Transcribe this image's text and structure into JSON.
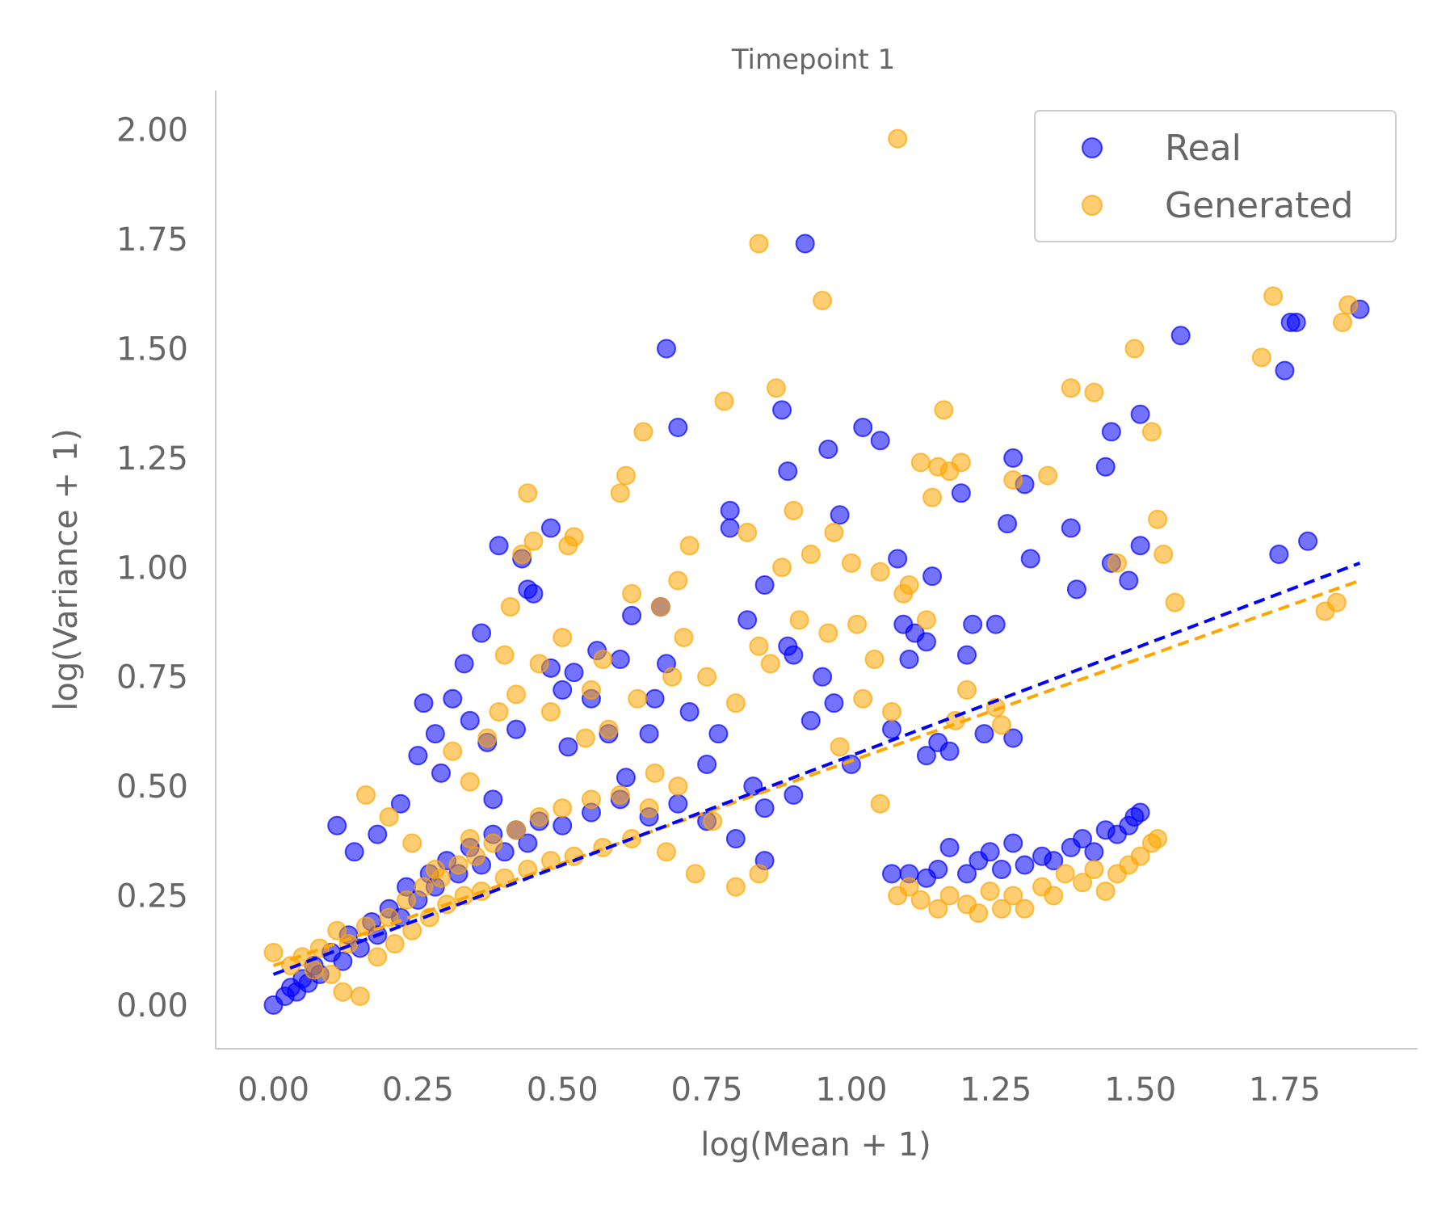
{
  "chart_data": {
    "type": "scatter",
    "title": "Timepoint 1",
    "xlabel": "log(Mean + 1)",
    "ylabel": "log(Variance + 1)",
    "xlim": [
      -0.1,
      1.98
    ],
    "ylim": [
      -0.1,
      2.09
    ],
    "x_ticks": [
      "0.00",
      "0.25",
      "0.50",
      "0.75",
      "1.00",
      "1.25",
      "1.50",
      "1.75"
    ],
    "y_ticks": [
      "0.00",
      "0.25",
      "0.50",
      "0.75",
      "1.00",
      "1.25",
      "1.50",
      "1.75",
      "2.00"
    ],
    "x_tick_values": [
      0,
      0.25,
      0.5,
      0.75,
      1.0,
      1.25,
      1.5,
      1.75
    ],
    "y_tick_values": [
      0,
      0.25,
      0.5,
      0.75,
      1.0,
      1.25,
      1.5,
      1.75,
      2.0
    ],
    "grid": false,
    "legend_position": "top-right",
    "series": [
      {
        "name": "Real",
        "color": "#0000ff",
        "alpha": 0.55,
        "fit_line": {
          "x": [
            0.0,
            1.88
          ],
          "y": [
            0.07,
            1.01
          ]
        },
        "points": [
          [
            0.0,
            0.0
          ],
          [
            0.02,
            0.02
          ],
          [
            0.03,
            0.04
          ],
          [
            0.04,
            0.03
          ],
          [
            0.05,
            0.06
          ],
          [
            0.06,
            0.05
          ],
          [
            0.07,
            0.09
          ],
          [
            0.08,
            0.07
          ],
          [
            0.1,
            0.12
          ],
          [
            0.12,
            0.1
          ],
          [
            0.13,
            0.16
          ],
          [
            0.15,
            0.13
          ],
          [
            0.17,
            0.19
          ],
          [
            0.18,
            0.16
          ],
          [
            0.2,
            0.22
          ],
          [
            0.22,
            0.2
          ],
          [
            0.23,
            0.27
          ],
          [
            0.25,
            0.24
          ],
          [
            0.27,
            0.3
          ],
          [
            0.28,
            0.27
          ],
          [
            0.3,
            0.33
          ],
          [
            0.32,
            0.3
          ],
          [
            0.34,
            0.36
          ],
          [
            0.36,
            0.32
          ],
          [
            0.38,
            0.39
          ],
          [
            0.4,
            0.35
          ],
          [
            0.42,
            0.4
          ],
          [
            0.44,
            0.37
          ],
          [
            0.46,
            0.42
          ],
          [
            0.5,
            0.41
          ],
          [
            0.55,
            0.44
          ],
          [
            0.6,
            0.47
          ],
          [
            0.65,
            0.43
          ],
          [
            0.7,
            0.46
          ],
          [
            0.75,
            0.42
          ],
          [
            0.8,
            0.38
          ],
          [
            0.85,
            0.45
          ],
          [
            0.9,
            0.48
          ],
          [
            0.11,
            0.41
          ],
          [
            0.14,
            0.35
          ],
          [
            0.18,
            0.39
          ],
          [
            0.22,
            0.46
          ],
          [
            0.25,
            0.57
          ],
          [
            0.26,
            0.69
          ],
          [
            0.28,
            0.62
          ],
          [
            0.29,
            0.53
          ],
          [
            0.31,
            0.7
          ],
          [
            0.33,
            0.78
          ],
          [
            0.34,
            0.65
          ],
          [
            0.36,
            0.85
          ],
          [
            0.37,
            0.6
          ],
          [
            0.38,
            0.47
          ],
          [
            0.39,
            1.05
          ],
          [
            0.42,
            0.63
          ],
          [
            0.43,
            1.02
          ],
          [
            0.44,
            0.95
          ],
          [
            0.45,
            0.94
          ],
          [
            0.48,
            0.77
          ],
          [
            0.48,
            1.09
          ],
          [
            0.5,
            0.72
          ],
          [
            0.51,
            0.59
          ],
          [
            0.52,
            0.76
          ],
          [
            0.55,
            0.7
          ],
          [
            0.56,
            0.81
          ],
          [
            0.58,
            0.62
          ],
          [
            0.6,
            0.79
          ],
          [
            0.61,
            0.52
          ],
          [
            0.62,
            0.89
          ],
          [
            0.65,
            0.62
          ],
          [
            0.66,
            0.7
          ],
          [
            0.67,
            0.91
          ],
          [
            0.68,
            0.78
          ],
          [
            0.68,
            1.5
          ],
          [
            0.7,
            1.32
          ],
          [
            0.72,
            0.67
          ],
          [
            0.75,
            0.55
          ],
          [
            0.77,
            0.62
          ],
          [
            0.79,
            1.13
          ],
          [
            0.79,
            1.09
          ],
          [
            0.82,
            0.88
          ],
          [
            0.83,
            0.5
          ],
          [
            0.85,
            0.96
          ],
          [
            0.85,
            0.33
          ],
          [
            0.88,
            1.36
          ],
          [
            0.89,
            1.22
          ],
          [
            0.89,
            0.82
          ],
          [
            0.9,
            0.8
          ],
          [
            0.92,
            1.74
          ],
          [
            0.93,
            0.65
          ],
          [
            0.95,
            0.75
          ],
          [
            0.96,
            1.27
          ],
          [
            0.97,
            0.69
          ],
          [
            0.98,
            1.12
          ],
          [
            1.0,
            0.55
          ],
          [
            1.02,
            1.32
          ],
          [
            1.05,
            1.29
          ],
          [
            1.07,
            0.63
          ],
          [
            1.08,
            1.02
          ],
          [
            1.09,
            0.87
          ],
          [
            1.1,
            0.79
          ],
          [
            1.11,
            0.85
          ],
          [
            1.13,
            0.83
          ],
          [
            1.13,
            0.57
          ],
          [
            1.14,
            0.98
          ],
          [
            1.15,
            0.6
          ],
          [
            1.17,
            0.58
          ],
          [
            1.19,
            1.17
          ],
          [
            1.2,
            0.8
          ],
          [
            1.21,
            0.87
          ],
          [
            1.23,
            0.62
          ],
          [
            1.25,
            0.87
          ],
          [
            1.27,
            1.1
          ],
          [
            1.28,
            1.25
          ],
          [
            1.28,
            0.61
          ],
          [
            1.3,
            1.19
          ],
          [
            1.31,
            1.02
          ],
          [
            1.38,
            1.09
          ],
          [
            1.39,
            0.95
          ],
          [
            1.44,
            1.23
          ],
          [
            1.45,
            1.31
          ],
          [
            1.45,
            1.01
          ],
          [
            1.48,
            0.97
          ],
          [
            1.5,
            1.35
          ],
          [
            1.5,
            1.05
          ],
          [
            1.57,
            1.53
          ],
          [
            1.74,
            1.03
          ],
          [
            1.75,
            1.45
          ],
          [
            1.76,
            1.56
          ],
          [
            1.77,
            1.56
          ],
          [
            1.79,
            1.06
          ],
          [
            1.88,
            1.59
          ],
          [
            1.07,
            0.3
          ],
          [
            1.1,
            0.3
          ],
          [
            1.13,
            0.29
          ],
          [
            1.15,
            0.31
          ],
          [
            1.17,
            0.36
          ],
          [
            1.2,
            0.3
          ],
          [
            1.22,
            0.33
          ],
          [
            1.24,
            0.35
          ],
          [
            1.26,
            0.31
          ],
          [
            1.28,
            0.37
          ],
          [
            1.3,
            0.32
          ],
          [
            1.33,
            0.34
          ],
          [
            1.35,
            0.33
          ],
          [
            1.38,
            0.36
          ],
          [
            1.4,
            0.38
          ],
          [
            1.42,
            0.35
          ],
          [
            1.44,
            0.4
          ],
          [
            1.46,
            0.39
          ],
          [
            1.48,
            0.41
          ],
          [
            1.49,
            0.43
          ],
          [
            1.5,
            0.44
          ]
        ]
      },
      {
        "name": "Generated",
        "color": "#ffa500",
        "alpha": 0.55,
        "fit_line": {
          "x": [
            0.0,
            1.88
          ],
          "y": [
            0.09,
            0.97
          ]
        },
        "points": [
          [
            0.0,
            0.12
          ],
          [
            0.03,
            0.09
          ],
          [
            0.05,
            0.11
          ],
          [
            0.07,
            0.08
          ],
          [
            0.08,
            0.13
          ],
          [
            0.1,
            0.07
          ],
          [
            0.11,
            0.17
          ],
          [
            0.12,
            0.03
          ],
          [
            0.13,
            0.14
          ],
          [
            0.15,
            0.02
          ],
          [
            0.16,
            0.18
          ],
          [
            0.18,
            0.11
          ],
          [
            0.2,
            0.2
          ],
          [
            0.21,
            0.14
          ],
          [
            0.23,
            0.24
          ],
          [
            0.24,
            0.17
          ],
          [
            0.26,
            0.27
          ],
          [
            0.27,
            0.2
          ],
          [
            0.29,
            0.29
          ],
          [
            0.3,
            0.23
          ],
          [
            0.32,
            0.32
          ],
          [
            0.33,
            0.25
          ],
          [
            0.35,
            0.34
          ],
          [
            0.36,
            0.26
          ],
          [
            0.38,
            0.37
          ],
          [
            0.4,
            0.29
          ],
          [
            0.42,
            0.4
          ],
          [
            0.44,
            0.31
          ],
          [
            0.46,
            0.43
          ],
          [
            0.48,
            0.33
          ],
          [
            0.5,
            0.45
          ],
          [
            0.52,
            0.34
          ],
          [
            0.55,
            0.47
          ],
          [
            0.57,
            0.36
          ],
          [
            0.6,
            0.48
          ],
          [
            0.62,
            0.38
          ],
          [
            0.65,
            0.45
          ],
          [
            0.68,
            0.35
          ],
          [
            0.7,
            0.5
          ],
          [
            0.73,
            0.3
          ],
          [
            0.76,
            0.42
          ],
          [
            0.8,
            0.27
          ],
          [
            0.84,
            0.3
          ],
          [
            0.16,
            0.48
          ],
          [
            0.2,
            0.43
          ],
          [
            0.24,
            0.37
          ],
          [
            0.28,
            0.31
          ],
          [
            0.34,
            0.38
          ],
          [
            0.31,
            0.58
          ],
          [
            0.34,
            0.51
          ],
          [
            0.37,
            0.61
          ],
          [
            0.39,
            0.67
          ],
          [
            0.4,
            0.8
          ],
          [
            0.41,
            0.91
          ],
          [
            0.42,
            0.71
          ],
          [
            0.43,
            1.03
          ],
          [
            0.44,
            1.17
          ],
          [
            0.45,
            1.06
          ],
          [
            0.46,
            0.78
          ],
          [
            0.48,
            0.67
          ],
          [
            0.5,
            0.84
          ],
          [
            0.51,
            1.05
          ],
          [
            0.52,
            1.07
          ],
          [
            0.54,
            0.61
          ],
          [
            0.55,
            0.72
          ],
          [
            0.57,
            0.79
          ],
          [
            0.58,
            0.63
          ],
          [
            0.6,
            1.17
          ],
          [
            0.61,
            1.21
          ],
          [
            0.62,
            0.94
          ],
          [
            0.63,
            0.7
          ],
          [
            0.64,
            1.31
          ],
          [
            0.66,
            0.53
          ],
          [
            0.67,
            0.91
          ],
          [
            0.69,
            0.75
          ],
          [
            0.7,
            0.97
          ],
          [
            0.71,
            0.84
          ],
          [
            0.72,
            1.05
          ],
          [
            0.75,
            0.75
          ],
          [
            0.78,
            1.38
          ],
          [
            0.8,
            0.69
          ],
          [
            0.82,
            1.08
          ],
          [
            0.84,
            0.82
          ],
          [
            0.84,
            1.74
          ],
          [
            0.86,
            0.78
          ],
          [
            0.87,
            1.41
          ],
          [
            0.88,
            1.0
          ],
          [
            0.9,
            1.13
          ],
          [
            0.91,
            0.88
          ],
          [
            0.93,
            1.03
          ],
          [
            0.95,
            1.61
          ],
          [
            0.96,
            0.85
          ],
          [
            0.97,
            1.08
          ],
          [
            0.98,
            0.59
          ],
          [
            1.0,
            1.01
          ],
          [
            1.01,
            0.87
          ],
          [
            1.02,
            0.7
          ],
          [
            1.04,
            0.79
          ],
          [
            1.05,
            0.99
          ],
          [
            1.05,
            0.46
          ],
          [
            1.07,
            0.67
          ],
          [
            1.08,
            1.98
          ],
          [
            1.09,
            0.94
          ],
          [
            1.1,
            0.96
          ],
          [
            1.12,
            1.24
          ],
          [
            1.13,
            0.88
          ],
          [
            1.14,
            1.16
          ],
          [
            1.15,
            1.23
          ],
          [
            1.16,
            1.36
          ],
          [
            1.17,
            1.22
          ],
          [
            1.18,
            0.65
          ],
          [
            1.19,
            1.24
          ],
          [
            1.2,
            0.72
          ],
          [
            1.25,
            0.68
          ],
          [
            1.26,
            0.64
          ],
          [
            1.28,
            1.2
          ],
          [
            1.34,
            1.21
          ],
          [
            1.38,
            1.41
          ],
          [
            1.42,
            1.4
          ],
          [
            1.46,
            1.01
          ],
          [
            1.49,
            1.5
          ],
          [
            1.52,
            1.31
          ],
          [
            1.53,
            1.11
          ],
          [
            1.54,
            1.03
          ],
          [
            1.56,
            0.92
          ],
          [
            1.71,
            1.48
          ],
          [
            1.73,
            1.62
          ],
          [
            1.82,
            0.9
          ],
          [
            1.84,
            0.92
          ],
          [
            1.85,
            1.56
          ],
          [
            1.86,
            1.6
          ],
          [
            1.08,
            0.25
          ],
          [
            1.1,
            0.27
          ],
          [
            1.12,
            0.24
          ],
          [
            1.15,
            0.22
          ],
          [
            1.17,
            0.25
          ],
          [
            1.2,
            0.23
          ],
          [
            1.22,
            0.21
          ],
          [
            1.24,
            0.26
          ],
          [
            1.26,
            0.22
          ],
          [
            1.28,
            0.25
          ],
          [
            1.3,
            0.22
          ],
          [
            1.33,
            0.27
          ],
          [
            1.35,
            0.25
          ],
          [
            1.37,
            0.3
          ],
          [
            1.4,
            0.28
          ],
          [
            1.42,
            0.31
          ],
          [
            1.44,
            0.26
          ],
          [
            1.46,
            0.3
          ],
          [
            1.48,
            0.32
          ],
          [
            1.5,
            0.34
          ],
          [
            1.52,
            0.37
          ],
          [
            1.53,
            0.38
          ]
        ]
      }
    ]
  }
}
